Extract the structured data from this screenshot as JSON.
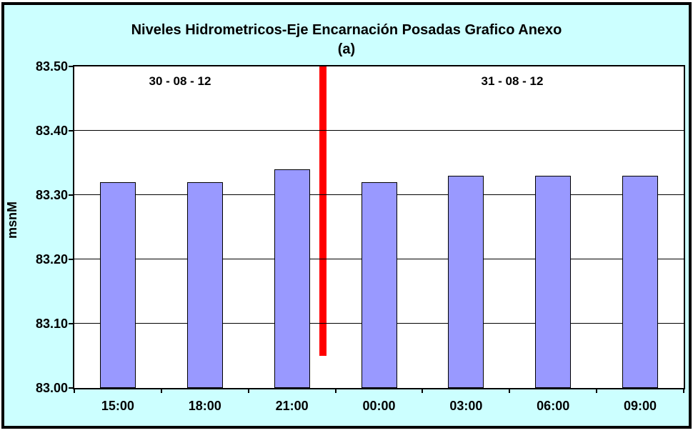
{
  "chart_data": {
    "type": "bar",
    "title": "Niveles Hidrometricos-Eje Encarnación Posadas Grafico Anexo",
    "subtitle": "(a)",
    "ylabel": "msnM",
    "categories": [
      "15:00",
      "18:00",
      "21:00",
      "00:00",
      "03:00",
      "06:00",
      "09:00"
    ],
    "values": [
      83.32,
      83.32,
      83.34,
      83.32,
      83.33,
      83.33,
      83.33
    ],
    "ylim": [
      83.0,
      83.5
    ],
    "yticks": [
      {
        "value": 83.5,
        "label": "83.50"
      },
      {
        "value": 83.4,
        "label": "83.40"
      },
      {
        "value": 83.3,
        "label": "83.30"
      },
      {
        "value": 83.2,
        "label": "83.20"
      },
      {
        "value": 83.1,
        "label": "83.10"
      },
      {
        "value": 83.0,
        "label": "83.00"
      }
    ],
    "grid": true,
    "legend_position": "none",
    "annotations": {
      "date_left": "30 - 08 - 12",
      "date_right": "31 - 08 - 12",
      "divider": {
        "type": "vertical_line",
        "between": [
          "21:00",
          "00:00"
        ],
        "y_from": 83.5,
        "y_to": 83.05,
        "color": "#FF0000"
      }
    },
    "colors": {
      "chart_background": "#CCFFFF",
      "plot_background": "#FFFFFF",
      "bar_fill": "#9999FF",
      "bar_border": "#000000",
      "divider": "#FF0000",
      "text": "#000000",
      "frame_border": "#000000"
    }
  }
}
